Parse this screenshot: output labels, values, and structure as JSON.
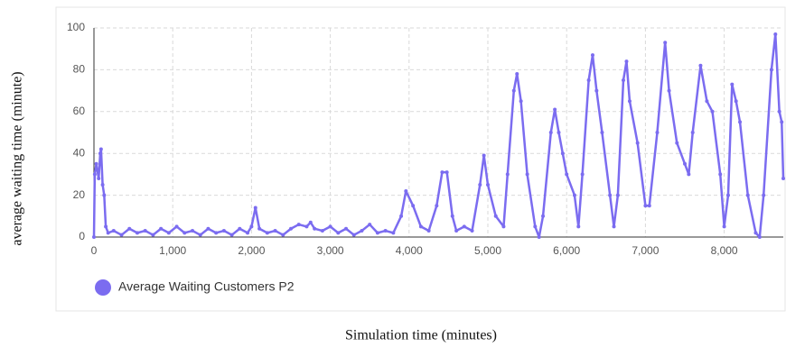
{
  "chart_data": {
    "type": "line",
    "x_label": "Simulation time (minutes)",
    "y_label": "average waiting time (minute)",
    "x": [
      0,
      10,
      30,
      60,
      80,
      90,
      110,
      130,
      150,
      180,
      250,
      350,
      450,
      550,
      650,
      750,
      850,
      950,
      1050,
      1150,
      1250,
      1350,
      1450,
      1550,
      1650,
      1750,
      1850,
      1950,
      2000,
      2050,
      2100,
      2200,
      2300,
      2400,
      2500,
      2600,
      2700,
      2750,
      2800,
      2900,
      3000,
      3100,
      3200,
      3300,
      3400,
      3500,
      3600,
      3700,
      3800,
      3900,
      3960,
      4050,
      4150,
      4250,
      4350,
      4420,
      4480,
      4550,
      4600,
      4700,
      4800,
      4900,
      4950,
      5000,
      5100,
      5200,
      5250,
      5330,
      5370,
      5420,
      5500,
      5600,
      5650,
      5700,
      5800,
      5850,
      5900,
      5950,
      6000,
      6100,
      6150,
      6200,
      6280,
      6330,
      6380,
      6450,
      6550,
      6600,
      6650,
      6720,
      6760,
      6800,
      6900,
      7000,
      7050,
      7150,
      7250,
      7300,
      7400,
      7500,
      7550,
      7600,
      7700,
      7780,
      7850,
      7950,
      8000,
      8050,
      8100,
      8150,
      8200,
      8300,
      8400,
      8450,
      8500,
      8600,
      8650,
      8700,
      8730,
      8750
    ],
    "series": [
      {
        "name": "Average Waiting Customers P2",
        "color": "#7b6cf0",
        "values": [
          0,
          30,
          35,
          28,
          40,
          42,
          25,
          20,
          5,
          2,
          3,
          1,
          4,
          2,
          3,
          1,
          4,
          2,
          5,
          2,
          3,
          1,
          4,
          2,
          3,
          1,
          4,
          2,
          5,
          14,
          4,
          2,
          3,
          1,
          4,
          6,
          5,
          7,
          4,
          3,
          5,
          2,
          4,
          1,
          3,
          6,
          2,
          3,
          2,
          10,
          22,
          15,
          5,
          3,
          15,
          31,
          31,
          10,
          3,
          5,
          3,
          25,
          39,
          25,
          10,
          5,
          30,
          70,
          78,
          65,
          30,
          5,
          0,
          10,
          50,
          61,
          50,
          40,
          30,
          20,
          5,
          30,
          75,
          87,
          70,
          50,
          20,
          5,
          20,
          75,
          84,
          65,
          45,
          15,
          15,
          50,
          93,
          70,
          45,
          35,
          30,
          50,
          82,
          65,
          60,
          30,
          5,
          20,
          73,
          65,
          55,
          20,
          2,
          0,
          20,
          80,
          97,
          60,
          55,
          28
        ]
      }
    ],
    "xlim": [
      0,
      8750
    ],
    "ylim": [
      0,
      100
    ],
    "xticks": [
      0,
      {
        "value": 1000,
        "label": "1,000"
      },
      {
        "value": 2000,
        "label": "2,000"
      },
      {
        "value": 3000,
        "label": "3,000"
      },
      {
        "value": 4000,
        "label": "4,000"
      },
      {
        "value": 5000,
        "label": "5,000"
      },
      {
        "value": 6000,
        "label": "6,000"
      },
      {
        "value": 7000,
        "label": "7,000"
      },
      {
        "value": 8000,
        "label": "8,000"
      }
    ],
    "yticks": [
      0,
      20,
      40,
      60,
      80,
      100
    ],
    "grid": true,
    "legend": "bottom-left"
  }
}
